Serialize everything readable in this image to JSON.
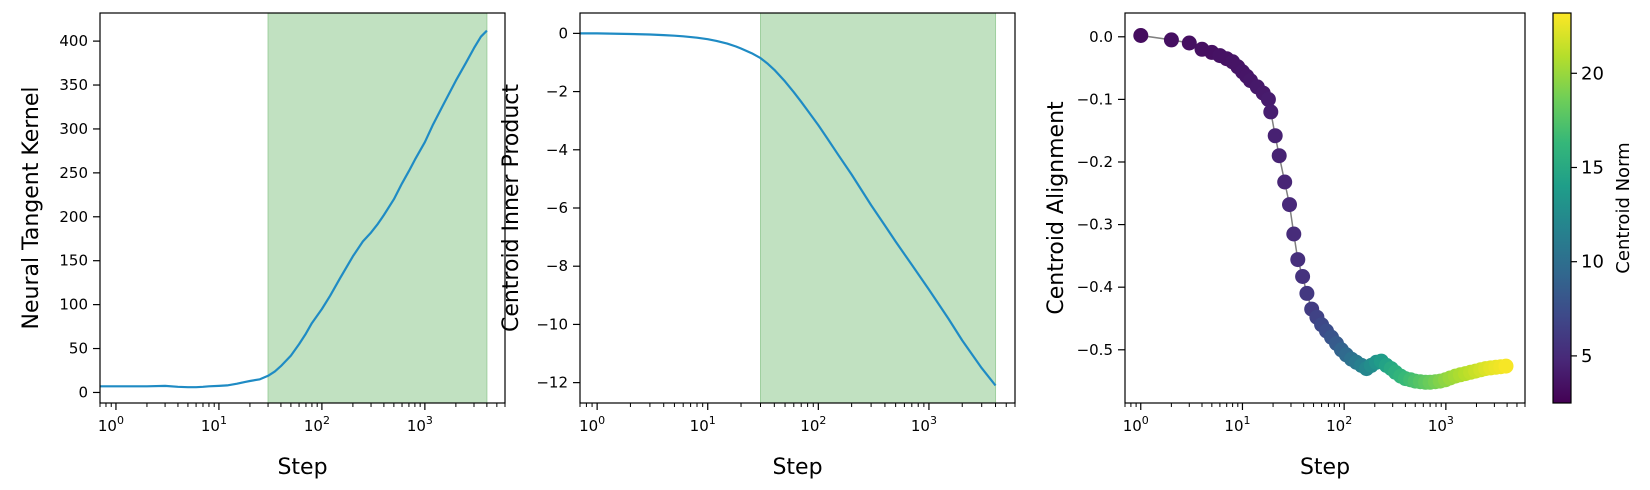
{
  "chart_data": [
    {
      "type": "line",
      "xlabel": "Step",
      "ylabel": "Neural Tangent Kernel",
      "xscale": "log",
      "xlim": [
        0.7,
        6000
      ],
      "ylim": [
        -12,
        432
      ],
      "xticks": [
        {
          "value": 1,
          "base": "10",
          "exp": "0"
        },
        {
          "value": 10,
          "base": "10",
          "exp": "1"
        },
        {
          "value": 100,
          "base": "10",
          "exp": "2"
        },
        {
          "value": 1000,
          "base": "10",
          "exp": "3"
        }
      ],
      "yticks": [
        {
          "value": 0,
          "label": "0"
        },
        {
          "value": 50,
          "label": "50"
        },
        {
          "value": 100,
          "label": "100"
        },
        {
          "value": 150,
          "label": "150"
        },
        {
          "value": 200,
          "label": "200"
        },
        {
          "value": 250,
          "label": "250"
        },
        {
          "value": 300,
          "label": "300"
        },
        {
          "value": 350,
          "label": "350"
        },
        {
          "value": 400,
          "label": "400"
        }
      ],
      "shaded_region": {
        "x": [
          30,
          4000
        ],
        "color": "#c1e1c1"
      },
      "line_color": "#1f8bc4",
      "series": [
        {
          "x": [
            0.7,
            1,
            1.5,
            2,
            3,
            4,
            5,
            6,
            7,
            8,
            10,
            12,
            15,
            18,
            20,
            25,
            30,
            35,
            40,
            50,
            60,
            70,
            80,
            100,
            120,
            150,
            200,
            250,
            300,
            350,
            400,
            500,
            600,
            700,
            800,
            1000,
            1200,
            1500,
            2000,
            2500,
            3000,
            3500,
            4000
          ],
          "y": [
            7,
            7,
            7,
            7,
            7.5,
            6.5,
            6,
            6,
            6.5,
            7,
            7.5,
            8,
            10,
            12,
            13,
            15,
            19,
            24,
            30,
            42,
            55,
            67,
            79,
            95,
            110,
            130,
            155,
            172,
            182,
            192,
            202,
            220,
            238,
            252,
            265,
            285,
            305,
            327,
            355,
            375,
            392,
            405,
            412
          ]
        }
      ]
    },
    {
      "type": "line",
      "xlabel": "Step",
      "ylabel": "Centroid Inner Product",
      "xscale": "log",
      "xlim": [
        0.7,
        6000
      ],
      "ylim": [
        -12.7,
        0.7
      ],
      "xticks": [
        {
          "value": 1,
          "base": "10",
          "exp": "0"
        },
        {
          "value": 10,
          "base": "10",
          "exp": "1"
        },
        {
          "value": 100,
          "base": "10",
          "exp": "2"
        },
        {
          "value": 1000,
          "base": "10",
          "exp": "3"
        }
      ],
      "yticks": [
        {
          "value": 0,
          "label": "0"
        },
        {
          "value": -2,
          "label": "−2"
        },
        {
          "value": -4,
          "label": "−4"
        },
        {
          "value": -6,
          "label": "−6"
        },
        {
          "value": -8,
          "label": "−8"
        },
        {
          "value": -10,
          "label": "−10"
        },
        {
          "value": -12,
          "label": "−12"
        }
      ],
      "shaded_region": {
        "x": [
          30,
          4000
        ],
        "color": "#c1e1c1"
      },
      "line_color": "#1f8bc4",
      "series": [
        {
          "x": [
            0.7,
            1,
            2,
            3,
            4,
            5,
            6,
            8,
            10,
            12,
            15,
            18,
            20,
            25,
            30,
            35,
            40,
            50,
            60,
            70,
            80,
            100,
            120,
            150,
            200,
            300,
            400,
            500,
            700,
            1000,
            1500,
            2000,
            3000,
            4000
          ],
          "y": [
            0,
            0,
            -0.02,
            -0.04,
            -0.06,
            -0.08,
            -0.1,
            -0.15,
            -0.2,
            -0.26,
            -0.35,
            -0.45,
            -0.52,
            -0.68,
            -0.85,
            -1.05,
            -1.25,
            -1.65,
            -2.02,
            -2.35,
            -2.65,
            -3.15,
            -3.6,
            -4.15,
            -4.85,
            -5.9,
            -6.6,
            -7.15,
            -7.95,
            -8.8,
            -9.8,
            -10.55,
            -11.5,
            -12.1
          ]
        }
      ]
    },
    {
      "type": "scatter",
      "xlabel": "Step",
      "ylabel": "Centroid Alignment",
      "xscale": "log",
      "xlim": [
        0.7,
        6000
      ],
      "ylim": [
        -0.585,
        0.038
      ],
      "xticks": [
        {
          "value": 1,
          "base": "10",
          "exp": "0"
        },
        {
          "value": 10,
          "base": "10",
          "exp": "1"
        },
        {
          "value": 100,
          "base": "10",
          "exp": "2"
        },
        {
          "value": 1000,
          "base": "10",
          "exp": "3"
        }
      ],
      "yticks": [
        {
          "value": 0,
          "label": "0.0"
        },
        {
          "value": -0.1,
          "label": "−0.1"
        },
        {
          "value": -0.2,
          "label": "−0.2"
        },
        {
          "value": -0.3,
          "label": "−0.3"
        },
        {
          "value": -0.4,
          "label": "−0.4"
        },
        {
          "value": -0.5,
          "label": "−0.5"
        }
      ],
      "connect_line_color": "#808080",
      "colorbar": {
        "label": "Centroid Norm",
        "range": [
          2.5,
          23.2
        ],
        "ticks": [
          {
            "value": 5,
            "label": "5"
          },
          {
            "value": 10,
            "label": "10"
          },
          {
            "value": 15,
            "label": "15"
          },
          {
            "value": 20,
            "label": "20"
          }
        ],
        "colormap": [
          "#440154",
          "#482878",
          "#3e4989",
          "#31688e",
          "#26828e",
          "#1f9e89",
          "#35b779",
          "#6ece58",
          "#b5de2b",
          "#fde725"
        ]
      },
      "x": [
        1,
        2,
        3,
        4,
        5,
        6,
        7,
        8,
        9,
        10,
        11,
        12,
        14,
        16,
        18,
        19,
        21,
        23,
        26,
        29,
        32,
        35,
        39,
        43,
        48,
        54,
        60,
        67,
        75,
        84,
        94,
        105,
        118,
        132,
        148,
        166,
        185,
        207,
        232,
        260,
        290,
        320,
        360,
        400,
        450,
        500,
        560,
        630,
        700,
        790,
        880,
        990,
        1100,
        1240,
        1390,
        1560,
        1750,
        1960,
        2200,
        2460,
        2760,
        3100,
        3470,
        3900
      ],
      "y": [
        0.002,
        -0.005,
        -0.01,
        -0.02,
        -0.025,
        -0.03,
        -0.035,
        -0.04,
        -0.048,
        -0.056,
        -0.063,
        -0.07,
        -0.08,
        -0.09,
        -0.1,
        -0.12,
        -0.158,
        -0.19,
        -0.232,
        -0.268,
        -0.315,
        -0.356,
        -0.383,
        -0.41,
        -0.435,
        -0.448,
        -0.46,
        -0.47,
        -0.48,
        -0.49,
        -0.5,
        -0.508,
        -0.515,
        -0.52,
        -0.525,
        -0.53,
        -0.525,
        -0.52,
        -0.518,
        -0.525,
        -0.53,
        -0.536,
        -0.542,
        -0.546,
        -0.548,
        -0.55,
        -0.551,
        -0.552,
        -0.552,
        -0.551,
        -0.55,
        -0.548,
        -0.545,
        -0.542,
        -0.54,
        -0.538,
        -0.536,
        -0.534,
        -0.532,
        -0.53,
        -0.529,
        -0.528,
        -0.527,
        -0.526
      ],
      "c": [
        3.2,
        3.3,
        3.3,
        3.4,
        3.4,
        3.5,
        3.5,
        3.6,
        3.6,
        3.7,
        3.7,
        3.8,
        3.9,
        4,
        4.1,
        4.2,
        4.4,
        4.5,
        4.7,
        4.9,
        5.1,
        5.3,
        5.6,
        5.9,
        6.2,
        6.6,
        7,
        7.4,
        7.9,
        8.4,
        9,
        9.6,
        10.2,
        10.8,
        11.4,
        12,
        12.6,
        13.2,
        13.8,
        14.4,
        15,
        15.5,
        16,
        16.4,
        16.8,
        17.2,
        17.6,
        18,
        18.4,
        18.8,
        19.2,
        19.6,
        20,
        20.3,
        20.6,
        20.9,
        21.2,
        21.5,
        21.8,
        22.1,
        22.4,
        22.6,
        22.8,
        23
      ]
    }
  ]
}
